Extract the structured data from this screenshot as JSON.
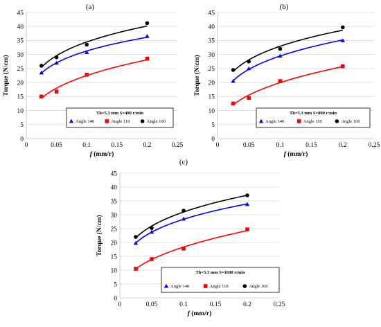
{
  "chart_data": [
    {
      "type": "scatter",
      "panel": "(a)",
      "xlabel_var": "f",
      "xlabel_unit": " (mm/r)",
      "ylabel": "Torque (N/cm)",
      "xlim": [
        0,
        0.25
      ],
      "ylim": [
        0,
        45
      ],
      "xticks": [
        "0",
        "0.05",
        "0.1",
        "0.15",
        "0.2",
        "0.25"
      ],
      "yticks": [
        "0",
        "5",
        "10",
        "15",
        "20",
        "25",
        "30",
        "35",
        "40",
        "45"
      ],
      "grid": "horizontal",
      "condition": "Th=5.3 mm   S=400 r/min",
      "legend_position": "bottom-right",
      "series": [
        {
          "name": "Angle 140",
          "marker": "triangle",
          "color": "#0000ff",
          "x": [
            0.025,
            0.05,
            0.1,
            0.2
          ],
          "y": [
            23.5,
            27.0,
            30.8,
            36.5
          ]
        },
        {
          "name": "Angle 118",
          "marker": "square",
          "color": "#ff0000",
          "x": [
            0.025,
            0.05,
            0.1,
            0.2
          ],
          "y": [
            15.0,
            16.8,
            22.8,
            28.5
          ]
        },
        {
          "name": "Angle 100",
          "marker": "circle",
          "color": "#000000",
          "x": [
            0.025,
            0.05,
            0.1,
            0.2
          ],
          "y": [
            26.0,
            29.0,
            33.5,
            41.2
          ]
        }
      ]
    },
    {
      "type": "scatter",
      "panel": "(b)",
      "xlabel_var": "f",
      "xlabel_unit": " (mm/r)",
      "ylabel": "Torque (N/cm)",
      "xlim": [
        0,
        0.25
      ],
      "ylim": [
        0,
        45
      ],
      "xticks": [
        "0",
        "0.05",
        "0.1",
        "0.15",
        "0.2",
        "0.25"
      ],
      "yticks": [
        "0",
        "5",
        "10",
        "15",
        "20",
        "25",
        "30",
        "35",
        "40",
        "45"
      ],
      "grid": "horizontal",
      "condition": "Th=5.3 mm   S=800 r/min",
      "legend_position": "bottom-right",
      "series": [
        {
          "name": "Angle 140",
          "marker": "triangle",
          "color": "#0000ff",
          "x": [
            0.025,
            0.05,
            0.1,
            0.2
          ],
          "y": [
            20.5,
            25.0,
            29.5,
            35.0
          ]
        },
        {
          "name": "Angle 118",
          "marker": "square",
          "color": "#ff0000",
          "x": [
            0.025,
            0.05,
            0.1,
            0.2
          ],
          "y": [
            12.5,
            14.5,
            20.5,
            25.8
          ]
        },
        {
          "name": "Angle 100",
          "marker": "circle",
          "color": "#000000",
          "x": [
            0.025,
            0.05,
            0.1,
            0.2
          ],
          "y": [
            24.5,
            27.5,
            32.0,
            39.7
          ]
        }
      ]
    },
    {
      "type": "scatter",
      "panel": "(c)",
      "xlabel_var": "f",
      "xlabel_unit": " (mm/r)",
      "ylabel": "Torque (N/cm)",
      "xlim": [
        0,
        0.25
      ],
      "ylim": [
        0,
        45
      ],
      "xticks": [
        "0",
        "0.05",
        "0.1",
        "0.15",
        "0.2",
        "0.25"
      ],
      "yticks": [
        "0",
        "5",
        "10",
        "15",
        "20",
        "25",
        "30",
        "35",
        "40",
        "45"
      ],
      "grid": "horizontal",
      "condition": "Th=5.3 mm   S=1600 r/min",
      "legend_position": "bottom-right",
      "series": [
        {
          "name": "Angle 140",
          "marker": "triangle",
          "color": "#0000ff",
          "x": [
            0.025,
            0.05,
            0.1,
            0.2
          ],
          "y": [
            19.8,
            23.8,
            28.5,
            33.8
          ]
        },
        {
          "name": "Angle 118",
          "marker": "square",
          "color": "#ff0000",
          "x": [
            0.025,
            0.05,
            0.1,
            0.2
          ],
          "y": [
            10.5,
            14.0,
            17.8,
            24.7
          ]
        },
        {
          "name": "Angle 100",
          "marker": "circle",
          "color": "#000000",
          "x": [
            0.025,
            0.05,
            0.1,
            0.2
          ],
          "y": [
            22.0,
            25.2,
            31.5,
            37.0
          ]
        }
      ]
    }
  ]
}
